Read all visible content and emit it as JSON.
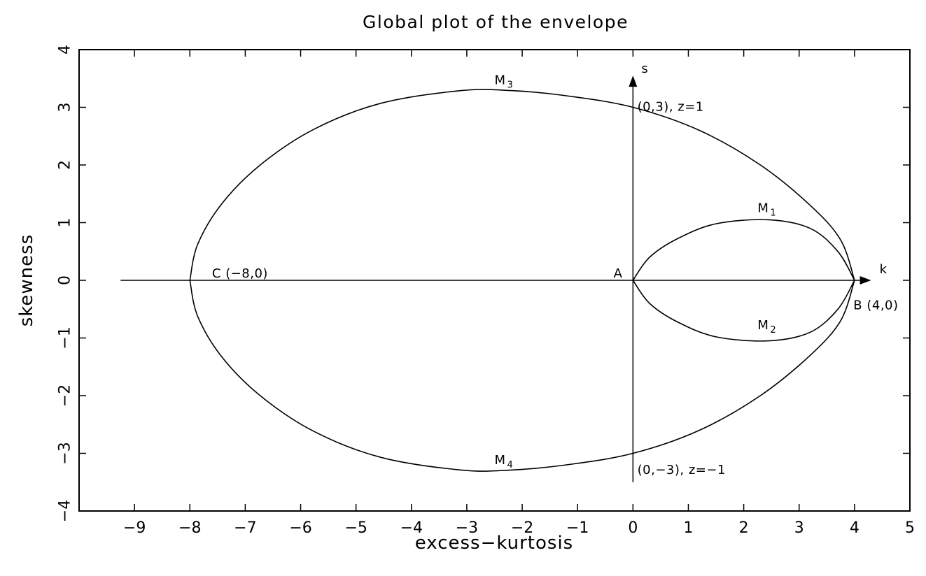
{
  "chart_data": {
    "type": "line",
    "title": "Global plot of the envelope",
    "xlabel": "excess−kurtosis",
    "ylabel": "skewness",
    "xlim": [
      -10,
      5
    ],
    "ylim": [
      -4,
      4
    ],
    "grid": false,
    "legend": "none",
    "x_ticks": [
      -9,
      -8,
      -7,
      -6,
      -5,
      -4,
      -3,
      -2,
      -1,
      0,
      1,
      2,
      3,
      4,
      5
    ],
    "x_tick_labels": [
      "−9",
      "−8",
      "−7",
      "−6",
      "−5",
      "−4",
      "−3",
      "−2",
      "−1",
      "0",
      "1",
      "2",
      "3",
      "4",
      "5"
    ],
    "y_ticks": [
      -4,
      -3,
      -2,
      -1,
      0,
      1,
      2,
      3,
      4
    ],
    "y_tick_labels": [
      "−4",
      "−3",
      "−2",
      "−1",
      "0",
      "1",
      "2",
      "3",
      "4"
    ],
    "series": [
      {
        "curve": "outer-envelope",
        "x": [
          -8.0,
          -7.86,
          -7.43,
          -6.73,
          -5.76,
          -4.55,
          -3.1,
          -2.2,
          -1.2,
          0.0,
          1.2,
          2.3,
          3.2,
          3.75,
          4.0
        ],
        "y": [
          0.0,
          0.62,
          1.32,
          2.0,
          2.62,
          3.07,
          3.29,
          3.29,
          3.2,
          3.0,
          2.6,
          2.0,
          1.3,
          0.7,
          0.0
        ]
      },
      {
        "curve": "inner-loop",
        "x": [
          0.0,
          0.3,
          0.8,
          1.5,
          2.45,
          3.2,
          3.7,
          4.0
        ],
        "y": [
          0.0,
          0.4,
          0.72,
          0.98,
          1.05,
          0.9,
          0.5,
          0.0
        ]
      }
    ],
    "axes_arrows": [
      {
        "from": [
          -9.25,
          0
        ],
        "to": [
          4.3,
          0
        ],
        "label": "k"
      },
      {
        "from": [
          0,
          -3.5
        ],
        "to": [
          0,
          3.55
        ],
        "label": "s"
      }
    ],
    "annotations": [
      {
        "text": "C (−8,0)",
        "x": -7.6,
        "y": 0.05
      },
      {
        "text": "A",
        "x": -0.35,
        "y": 0.05
      },
      {
        "text": "B (4,0)",
        "x": 3.98,
        "y": -0.5
      },
      {
        "text": "(0,3), z=1",
        "x": 0.08,
        "y": 2.94
      },
      {
        "text": "(0,−3), z=−1",
        "x": 0.08,
        "y": -3.36
      },
      {
        "text": "M",
        "sub": "1",
        "x": 2.25,
        "y": 1.18
      },
      {
        "text": "M",
        "sub": "2",
        "x": 2.25,
        "y": -0.85
      },
      {
        "text": "M",
        "sub": "3",
        "x": -2.5,
        "y": 3.4
      },
      {
        "text": "M",
        "sub": "4",
        "x": -2.5,
        "y": -3.19
      }
    ]
  }
}
